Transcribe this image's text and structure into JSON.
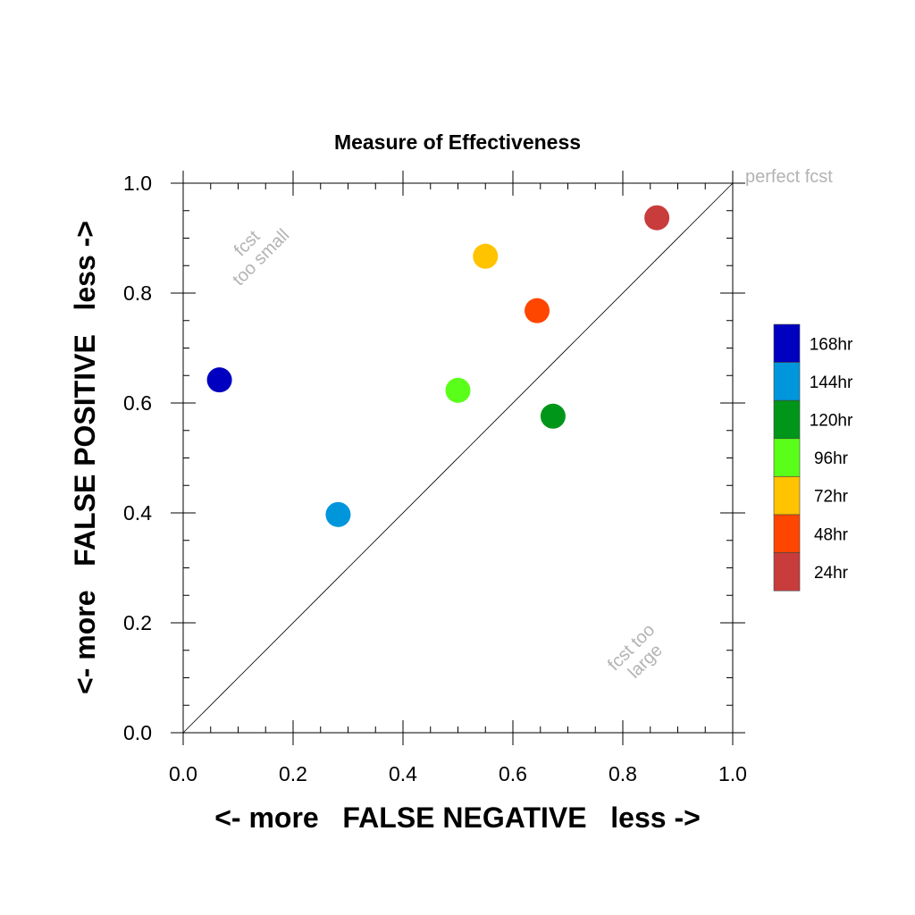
{
  "chart_data": {
    "type": "scatter",
    "title": "Measure of Effectiveness",
    "xlabel": "<- more   FALSE NEGATIVE   less ->",
    "ylabel": "<- more   FALSE POSITIVE   less ->",
    "xlim": [
      0.0,
      1.0
    ],
    "ylim": [
      0.0,
      1.0
    ],
    "xticks": [
      "0.0",
      "0.2",
      "0.4",
      "0.6",
      "0.8",
      "1.0"
    ],
    "yticks": [
      "0.0",
      "0.2",
      "0.4",
      "0.6",
      "0.8",
      "1.0"
    ],
    "grid": false,
    "diagonal_line": true,
    "legend_position": "right",
    "series": [
      {
        "name": "168hr",
        "color": "#0000c0",
        "x": 0.066,
        "y": 0.642
      },
      {
        "name": "144hr",
        "color": "#0096dc",
        "x": 0.282,
        "y": 0.397
      },
      {
        "name": "120hr",
        "color": "#009619",
        "x": 0.673,
        "y": 0.576
      },
      {
        "name": "96hr",
        "color": "#5aff19",
        "x": 0.5,
        "y": 0.623
      },
      {
        "name": "72hr",
        "color": "#ffc300",
        "x": 0.55,
        "y": 0.867
      },
      {
        "name": "48hr",
        "color": "#ff4600",
        "x": 0.644,
        "y": 0.768
      },
      {
        "name": "24hr",
        "color": "#c83c3c",
        "x": 0.862,
        "y": 0.937
      }
    ],
    "annotations": {
      "top_right": "perfect fcst",
      "upper_left_line1": "fcst",
      "upper_left_line2": "too small",
      "lower_right_line1": "fcst too",
      "lower_right_line2": "large"
    }
  }
}
